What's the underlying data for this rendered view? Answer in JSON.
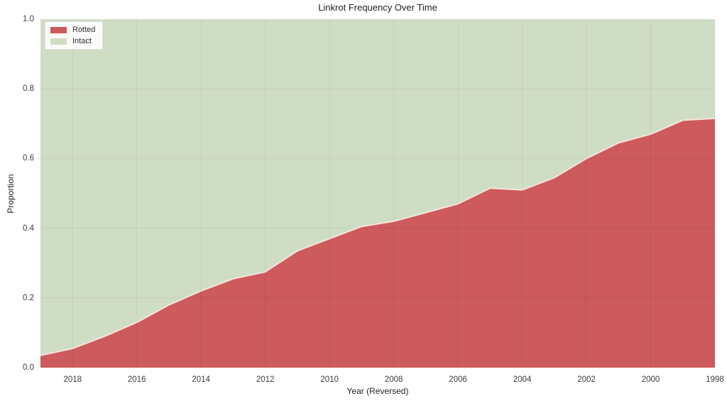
{
  "figure": {
    "title": "Linkrot Frequency Over Time",
    "xlabel": "Year (Reversed)",
    "ylabel": "Proportion"
  },
  "legend": {
    "items": [
      {
        "label": "Rotted",
        "color": "#cd5a5c"
      },
      {
        "label": "Intact",
        "color": "#d0ddc5"
      }
    ]
  },
  "chart_data": {
    "type": "area",
    "stacked": true,
    "title": "Linkrot Frequency Over Time",
    "xlabel": "Year (Reversed)",
    "ylabel": "Proportion",
    "x_axis_reversed": true,
    "x": [
      2019,
      2018,
      2017,
      2016,
      2015,
      2014,
      2013,
      2012,
      2011,
      2010,
      2009,
      2008,
      2007,
      2006,
      2005,
      2004,
      2003,
      2002,
      2001,
      2000,
      1999,
      1998
    ],
    "series": [
      {
        "name": "Rotted",
        "color": "#cd5a5c",
        "values": [
          0.035,
          0.055,
          0.09,
          0.13,
          0.18,
          0.22,
          0.255,
          0.275,
          0.335,
          0.37,
          0.405,
          0.42,
          0.445,
          0.47,
          0.515,
          0.51,
          0.545,
          0.6,
          0.645,
          0.67,
          0.71,
          0.715
        ]
      },
      {
        "name": "Intact",
        "color": "#d0ddc5",
        "values": [
          0.965,
          0.945,
          0.91,
          0.87,
          0.82,
          0.78,
          0.745,
          0.725,
          0.665,
          0.63,
          0.595,
          0.58,
          0.555,
          0.53,
          0.485,
          0.49,
          0.455,
          0.4,
          0.355,
          0.33,
          0.29,
          0.285
        ]
      }
    ],
    "xticks": [
      2018,
      2016,
      2014,
      2012,
      2010,
      2008,
      2006,
      2004,
      2002,
      2000,
      1998
    ],
    "yticks": [
      0.0,
      0.2,
      0.4,
      0.6,
      0.8,
      1.0
    ],
    "ylim": [
      0.0,
      1.0
    ],
    "grid": true,
    "grid_color": "rgba(0,0,0,0.055)",
    "boundary_line_color": "#f6e3dc",
    "legend_position": "upper left"
  }
}
